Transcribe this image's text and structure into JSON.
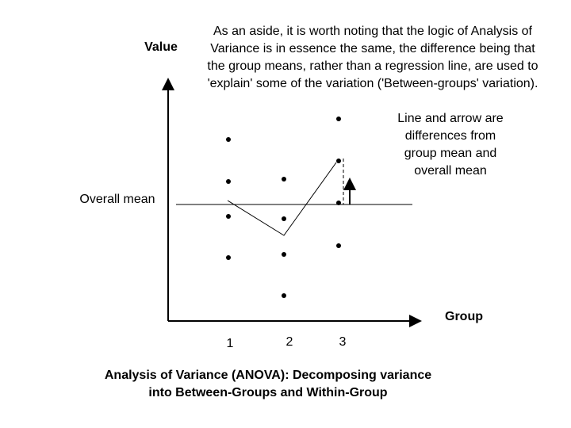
{
  "diagram": {
    "y_axis_label": "Value",
    "x_axis_label": "Group",
    "groups": [
      "1",
      "2",
      "3"
    ],
    "overall_mean_label": "Overall mean",
    "aside": [
      "As an aside, it is worth noting that the logic of Analysis of",
      "Variance is in essence the same, the difference being that",
      "the group means, rather than a regression line, are used to",
      "'explain' some of the variation ('Between-groups' variation)."
    ],
    "note": [
      "Line and arrow are",
      "differences from",
      "group mean and",
      "overall mean"
    ],
    "caption": [
      "Analysis of Variance (ANOVA): Decomposing variance",
      "into Between-Groups and Within-Group"
    ]
  }
}
